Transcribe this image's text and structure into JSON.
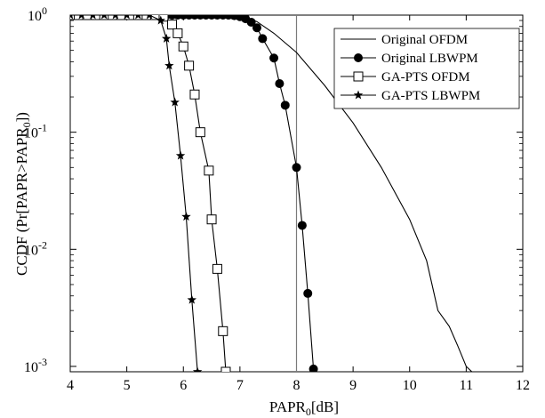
{
  "chart_data": {
    "type": "line",
    "xlabel": "PAPR",
    "xlabel_sub": "0",
    "xlabel_unit": "[dB]",
    "ylabel": "CCDF (Pr[PAPR>PAPR",
    "ylabel_sub": "0",
    "ylabel_end": "])",
    "xlim": [
      4,
      12
    ],
    "ylim": [
      0.0009,
      1
    ],
    "yscale": "log",
    "grid": false,
    "legend_position": "top-right",
    "x_ticks": [
      4,
      5,
      6,
      7,
      8,
      9,
      10,
      11,
      12
    ],
    "y_ticks": [
      {
        "value": 1,
        "base": "10",
        "exp": "0"
      },
      {
        "value": 0.1,
        "base": "10",
        "exp": "-1"
      },
      {
        "value": 0.01,
        "base": "10",
        "exp": "-2"
      },
      {
        "value": 0.001,
        "base": "10",
        "exp": "-3"
      }
    ],
    "reference_line_x": 8,
    "series": [
      {
        "name": "Original OFDM",
        "marker": "none",
        "points": [
          [
            4,
            1
          ],
          [
            6.5,
            1
          ],
          [
            6.9,
            0.99
          ],
          [
            7.1,
            0.96
          ],
          [
            7.3,
            0.88
          ],
          [
            7.6,
            0.7
          ],
          [
            8,
            0.48
          ],
          [
            8.5,
            0.25
          ],
          [
            9,
            0.12
          ],
          [
            9.5,
            0.05
          ],
          [
            10,
            0.018
          ],
          [
            10.3,
            0.008
          ],
          [
            10.5,
            0.003
          ],
          [
            10.7,
            0.0022
          ],
          [
            10.85,
            0.0015
          ],
          [
            11,
            0.001
          ],
          [
            11.1,
            0.0009
          ]
        ]
      },
      {
        "name": "Original LBWPM",
        "marker": "filled-circle",
        "points": [
          [
            4,
            1
          ],
          [
            4.1,
            1
          ],
          [
            4.2,
            1
          ],
          [
            4.3,
            1
          ],
          [
            4.4,
            1
          ],
          [
            4.5,
            1
          ],
          [
            4.6,
            1
          ],
          [
            4.7,
            1
          ],
          [
            4.8,
            1
          ],
          [
            4.9,
            1
          ],
          [
            5,
            1
          ],
          [
            5.1,
            1
          ],
          [
            5.2,
            1
          ],
          [
            5.3,
            1
          ],
          [
            5.4,
            1
          ],
          [
            5.5,
            1
          ],
          [
            5.6,
            1
          ],
          [
            5.7,
            1
          ],
          [
            5.8,
            1
          ],
          [
            5.9,
            1
          ],
          [
            6,
            1
          ],
          [
            6.1,
            1
          ],
          [
            6.2,
            1
          ],
          [
            6.3,
            1
          ],
          [
            6.4,
            1
          ],
          [
            6.5,
            1
          ],
          [
            6.6,
            1
          ],
          [
            6.7,
            1
          ],
          [
            6.8,
            1
          ],
          [
            6.9,
            0.99
          ],
          [
            7,
            0.97
          ],
          [
            7.1,
            0.93
          ],
          [
            7.2,
            0.87
          ],
          [
            7.3,
            0.78
          ],
          [
            7.4,
            0.63
          ],
          [
            7.6,
            0.43
          ],
          [
            7.7,
            0.26
          ],
          [
            7.8,
            0.17
          ],
          [
            8,
            0.05
          ],
          [
            8.1,
            0.016
          ],
          [
            8.2,
            0.0042
          ],
          [
            8.3,
            0.00095
          ]
        ]
      },
      {
        "name": "GA-PTS OFDM",
        "marker": "open-square",
        "points": [
          [
            4,
            1
          ],
          [
            4.15,
            1
          ],
          [
            4.3,
            1
          ],
          [
            4.45,
            1
          ],
          [
            4.6,
            1
          ],
          [
            4.75,
            1
          ],
          [
            4.9,
            1
          ],
          [
            5.05,
            1
          ],
          [
            5.2,
            1
          ],
          [
            5.35,
            1
          ],
          [
            5.5,
            1
          ],
          [
            5.65,
            0.97
          ],
          [
            5.8,
            0.83
          ],
          [
            5.9,
            0.7
          ],
          [
            6,
            0.54
          ],
          [
            6.1,
            0.37
          ],
          [
            6.2,
            0.21
          ],
          [
            6.3,
            0.1
          ],
          [
            6.45,
            0.047
          ],
          [
            6.5,
            0.018
          ],
          [
            6.6,
            0.0068
          ],
          [
            6.7,
            0.002
          ],
          [
            6.75,
            0.0009
          ]
        ]
      },
      {
        "name": "GA-PTS LBWPM",
        "marker": "filled-star",
        "points": [
          [
            4,
            1
          ],
          [
            4.2,
            1
          ],
          [
            4.4,
            1
          ],
          [
            4.6,
            1
          ],
          [
            4.8,
            1
          ],
          [
            5,
            1
          ],
          [
            5.2,
            1
          ],
          [
            5.4,
            1
          ],
          [
            5.6,
            0.9
          ],
          [
            5.7,
            0.63
          ],
          [
            5.75,
            0.37
          ],
          [
            5.85,
            0.18
          ],
          [
            5.95,
            0.063
          ],
          [
            6.05,
            0.019
          ],
          [
            6.15,
            0.0037
          ],
          [
            6.25,
            0.0009
          ]
        ]
      }
    ]
  }
}
